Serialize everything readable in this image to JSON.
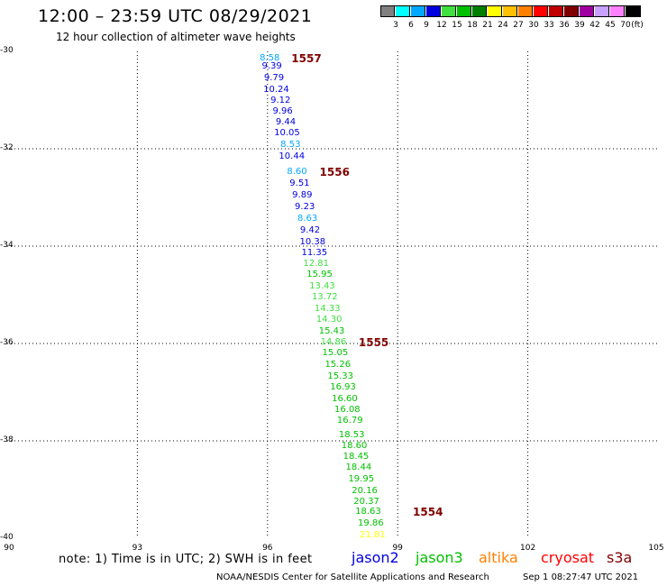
{
  "header": {
    "title": "12:00 – 23:59 UTC 08/29/2021",
    "subtitle": "12 hour collection of altimeter wave heights"
  },
  "colorbar": {
    "colors": [
      "#808080",
      "#00ffff",
      "#00a8ff",
      "#0000e0",
      "#40e040",
      "#00c000",
      "#007f00",
      "#ffff00",
      "#ffc000",
      "#ff8000",
      "#ff0000",
      "#c00000",
      "#800000",
      "#a000a0",
      "#c8a0ff",
      "#ff80ff",
      "#000000"
    ],
    "labels": [
      "3",
      "6",
      "9",
      "12",
      "15",
      "18",
      "21",
      "24",
      "27",
      "30",
      "33",
      "36",
      "39",
      "42",
      "45",
      "70"
    ],
    "unit": "(ft)"
  },
  "chart_data": {
    "type": "scatter",
    "xlim": [
      90,
      105
    ],
    "ylim": [
      -40,
      -30
    ],
    "x_ticks": [
      "90",
      "93",
      "96",
      "99",
      "102",
      "105"
    ],
    "y_ticks": [
      "-30",
      "-32",
      "-34",
      "-36",
      "-38",
      "-40"
    ],
    "grid": true,
    "points": [
      {
        "lon": 96.05,
        "lat": -30.15,
        "swh": "8.58",
        "color": "#00a8ff"
      },
      {
        "lon": 96.1,
        "lat": -30.32,
        "swh": "9.39",
        "color": "#0000e0"
      },
      {
        "lon": 96.15,
        "lat": -30.56,
        "swh": "9.79",
        "color": "#0000e0"
      },
      {
        "lon": 96.2,
        "lat": -30.79,
        "swh": "10.24",
        "color": "#0000e0"
      },
      {
        "lon": 96.3,
        "lat": -31.02,
        "swh": "9.12",
        "color": "#0000e0"
      },
      {
        "lon": 96.35,
        "lat": -31.24,
        "swh": "9.96",
        "color": "#0000e0"
      },
      {
        "lon": 96.42,
        "lat": -31.46,
        "swh": "9.44",
        "color": "#0000e0"
      },
      {
        "lon": 96.45,
        "lat": -31.69,
        "swh": "10.05",
        "color": "#0000e0"
      },
      {
        "lon": 96.53,
        "lat": -31.93,
        "swh": "8.53",
        "color": "#00a8ff"
      },
      {
        "lon": 96.56,
        "lat": -32.16,
        "swh": "10.44",
        "color": "#0000e0"
      },
      {
        "lon": 96.68,
        "lat": -32.48,
        "swh": "8.60",
        "color": "#00a8ff"
      },
      {
        "lon": 96.74,
        "lat": -32.73,
        "swh": "9.51",
        "color": "#0000e0"
      },
      {
        "lon": 96.8,
        "lat": -32.97,
        "swh": "9.89",
        "color": "#0000e0"
      },
      {
        "lon": 96.86,
        "lat": -33.21,
        "swh": "9.23",
        "color": "#0000e0"
      },
      {
        "lon": 96.92,
        "lat": -33.45,
        "swh": "8.63",
        "color": "#00a8ff"
      },
      {
        "lon": 96.98,
        "lat": -33.69,
        "swh": "9.42",
        "color": "#0000e0"
      },
      {
        "lon": 97.04,
        "lat": -33.93,
        "swh": "10.38",
        "color": "#0000e0"
      },
      {
        "lon": 97.08,
        "lat": -34.15,
        "swh": "11.35",
        "color": "#0000e0"
      },
      {
        "lon": 97.12,
        "lat": -34.37,
        "swh": "12.81",
        "color": "#40e040"
      },
      {
        "lon": 97.2,
        "lat": -34.6,
        "swh": "15.95",
        "color": "#00c000"
      },
      {
        "lon": 97.26,
        "lat": -34.83,
        "swh": "13.43",
        "color": "#40e040"
      },
      {
        "lon": 97.32,
        "lat": -35.06,
        "swh": "13.72",
        "color": "#40e040"
      },
      {
        "lon": 97.38,
        "lat": -35.29,
        "swh": "14.33",
        "color": "#40e040"
      },
      {
        "lon": 97.42,
        "lat": -35.52,
        "swh": "14.30",
        "color": "#40e040"
      },
      {
        "lon": 97.48,
        "lat": -35.75,
        "swh": "15.43",
        "color": "#00c000"
      },
      {
        "lon": 97.52,
        "lat": -35.98,
        "swh": "14.86",
        "color": "#40e040"
      },
      {
        "lon": 97.56,
        "lat": -36.21,
        "swh": "15.05",
        "color": "#00c000"
      },
      {
        "lon": 97.62,
        "lat": -36.44,
        "swh": "15.26",
        "color": "#00c000"
      },
      {
        "lon": 97.68,
        "lat": -36.68,
        "swh": "15.33",
        "color": "#00c000"
      },
      {
        "lon": 97.74,
        "lat": -36.91,
        "swh": "16.93",
        "color": "#00c000"
      },
      {
        "lon": 97.78,
        "lat": -37.14,
        "swh": "16.60",
        "color": "#00c000"
      },
      {
        "lon": 97.84,
        "lat": -37.37,
        "swh": "16.08",
        "color": "#00c000"
      },
      {
        "lon": 97.9,
        "lat": -37.6,
        "swh": "16.79",
        "color": "#00c000"
      },
      {
        "lon": 97.94,
        "lat": -37.88,
        "swh": "18.53",
        "color": "#00c000"
      },
      {
        "lon": 98.0,
        "lat": -38.11,
        "swh": "18.60",
        "color": "#00c000"
      },
      {
        "lon": 98.04,
        "lat": -38.34,
        "swh": "18.45",
        "color": "#00c000"
      },
      {
        "lon": 98.1,
        "lat": -38.56,
        "swh": "18.44",
        "color": "#00c000"
      },
      {
        "lon": 98.16,
        "lat": -38.8,
        "swh": "19.95",
        "color": "#00c000"
      },
      {
        "lon": 98.24,
        "lat": -39.03,
        "swh": "20.16",
        "color": "#00c000"
      },
      {
        "lon": 98.28,
        "lat": -39.26,
        "swh": "20.37",
        "color": "#00c000"
      },
      {
        "lon": 98.32,
        "lat": -39.46,
        "swh": "18.63",
        "color": "#00c000"
      },
      {
        "lon": 98.38,
        "lat": -39.7,
        "swh": "19.86",
        "color": "#00c000"
      },
      {
        "lon": 98.42,
        "lat": -39.95,
        "swh": "21.81",
        "color": "#ffff00"
      }
    ],
    "pass_labels": [
      {
        "lon": 96.55,
        "lat": -30.15,
        "text": "1557",
        "color": "#800000"
      },
      {
        "lon": 97.2,
        "lat": -32.48,
        "text": "1556",
        "color": "#800000"
      },
      {
        "lon": 98.1,
        "lat": -35.98,
        "text": "1555",
        "color": "#800000"
      },
      {
        "lon": 99.35,
        "lat": -39.46,
        "text": "1554",
        "color": "#800000"
      }
    ]
  },
  "footer": {
    "note": "note:  1) Time is in UTC;  2) SWH is in feet",
    "missions": [
      {
        "name": "jason2",
        "color": "#0000e0"
      },
      {
        "name": "jason3",
        "color": "#00c000"
      },
      {
        "name": "altika",
        "color": "#ff8000"
      },
      {
        "name": "cryosat",
        "color": "#ff0000"
      },
      {
        "name": "s3a",
        "color": "#800000"
      }
    ],
    "credit": "NOAA/NESDIS Center for Satellite Applications and Research",
    "timestamp": "Sep  1 08:27:47 UTC 2021"
  }
}
